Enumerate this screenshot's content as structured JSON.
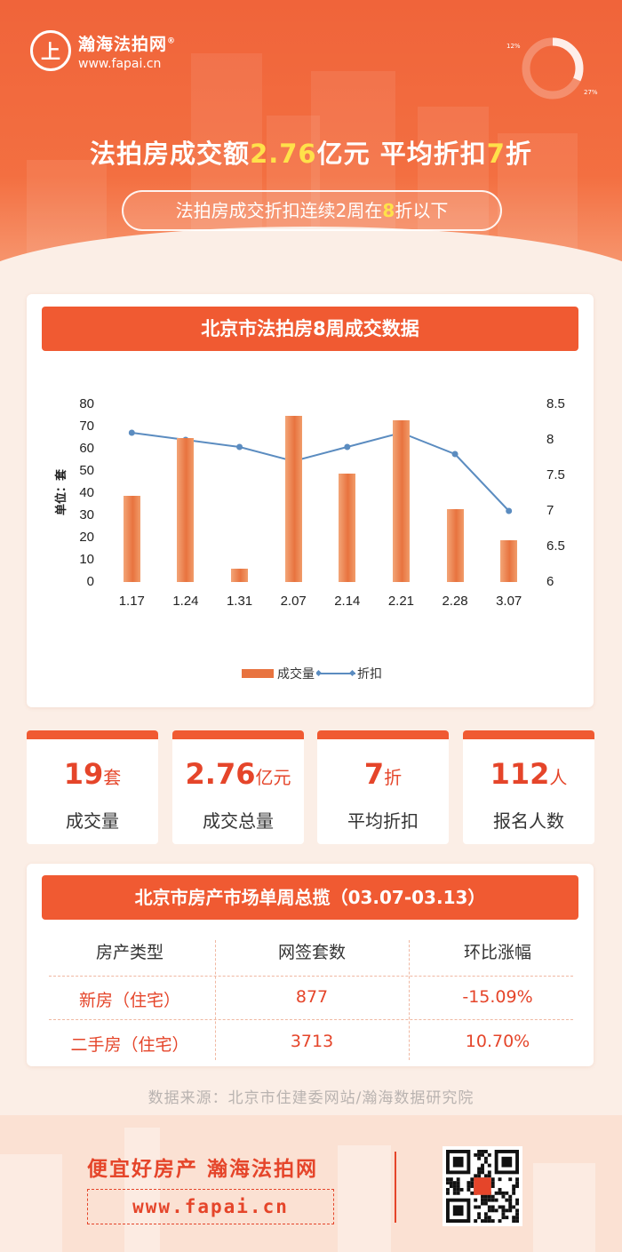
{
  "brand": {
    "name": "瀚海法拍网",
    "reg": "®",
    "url": "www.fapai.cn",
    "mark": "上"
  },
  "donut": {
    "label_a": "12%",
    "label_b": "27%"
  },
  "headline": {
    "part1": "法拍房成交额",
    "amount": "2.76",
    "part2": "亿元  平均折扣",
    "discount": "7",
    "part3": "折"
  },
  "subline": {
    "part1": "法拍房成交折扣连续2周在",
    "num": "8",
    "part2": "折以下"
  },
  "chart_section": {
    "title": "北京市法拍房8周成交数据"
  },
  "chart_data": {
    "type": "bar+line",
    "categories": [
      "1.17",
      "1.24",
      "1.31",
      "2.07",
      "2.14",
      "2.21",
      "2.28",
      "3.07"
    ],
    "series": [
      {
        "name": "成交量",
        "type": "bar",
        "axis": "left",
        "values": [
          39,
          65,
          6,
          75,
          49,
          73,
          33,
          19
        ]
      },
      {
        "name": "折扣",
        "type": "line",
        "axis": "right",
        "values": [
          8.1,
          8.0,
          7.9,
          7.7,
          7.9,
          8.1,
          7.8,
          7.0
        ]
      }
    ],
    "ylabel": "单位：套",
    "y_left": {
      "min": 0,
      "max": 80,
      "ticks": [
        "0",
        "10",
        "20",
        "30",
        "40",
        "50",
        "60",
        "70",
        "80"
      ]
    },
    "y_right": {
      "min": 6,
      "max": 8.5,
      "ticks": [
        "6",
        "6.5",
        "7",
        "7.5",
        "8",
        "8.5"
      ]
    },
    "legend_position": "bottom",
    "colors": {
      "bar": "#e8733f",
      "line": "#5b8cc0"
    }
  },
  "stats": [
    {
      "value": "19",
      "unit": "套",
      "label": "成交量"
    },
    {
      "value": "2.76",
      "unit": "亿元",
      "label": "成交总量"
    },
    {
      "value": "7",
      "unit": "折",
      "label": "平均折扣"
    },
    {
      "value": "112",
      "unit": "人",
      "label": "报名人数"
    }
  ],
  "market": {
    "title": "北京市房产市场单周总揽（03.07-03.13）",
    "headers": [
      "房产类型",
      "网签套数",
      "环比涨幅"
    ],
    "rows": [
      [
        "新房（住宅）",
        "877",
        "-15.09%"
      ],
      [
        "二手房（住宅）",
        "3713",
        "10.70%"
      ]
    ]
  },
  "source": "数据来源：北京市住建委网站/瀚海数据研究院",
  "footer": {
    "slogan": "便宜好房产  瀚海法拍网",
    "url": "www.fapai.cn"
  },
  "theme": {
    "accent": "#f05a32",
    "highlight": "#ffe14a",
    "text_red": "#e5452a"
  }
}
